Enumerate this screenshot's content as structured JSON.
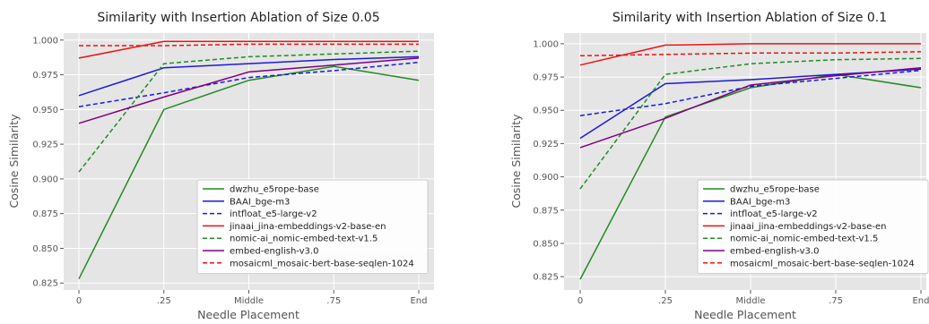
{
  "chart_data": [
    {
      "type": "line",
      "title": "Similarity with Insertion Ablation of Size 0.05",
      "xlabel": "Needle Placement",
      "ylabel": "Cosine Similarity",
      "categories": [
        "0",
        ".25",
        "Middle",
        ".75",
        "End"
      ],
      "ylim": [
        0.82,
        1.005
      ],
      "yticks": [
        "0.825",
        "0.850",
        "0.875",
        "0.900",
        "0.925",
        "0.950",
        "0.975",
        "1.000"
      ],
      "grid": true,
      "legend_position": "lower right",
      "series": [
        {
          "name": "dwzhu_e5rope-base",
          "color": "#228B22",
          "dashed": false,
          "values": [
            0.828,
            0.95,
            0.971,
            0.981,
            0.971
          ]
        },
        {
          "name": "BAAI_bge-m3",
          "color": "#1a1adb",
          "dashed": false,
          "values": [
            0.96,
            0.98,
            0.983,
            0.986,
            0.988
          ]
        },
        {
          "name": "intfloat_e5-large-v2",
          "color": "#1a1adb",
          "dashed": true,
          "values": [
            0.952,
            0.962,
            0.973,
            0.978,
            0.984
          ]
        },
        {
          "name": "jinaai_jina-embeddings-v2-base-en",
          "color": "#ee1111",
          "dashed": false,
          "values": [
            0.987,
            0.999,
            0.999,
            0.999,
            0.999
          ]
        },
        {
          "name": "nomic-ai_nomic-embed-text-v1.5",
          "color": "#228B22",
          "dashed": true,
          "values": [
            0.905,
            0.983,
            0.988,
            0.99,
            0.992
          ]
        },
        {
          "name": "embed-english-v3.0",
          "color": "#800080",
          "dashed": false,
          "values": [
            0.94,
            0.959,
            0.977,
            0.982,
            0.987
          ]
        },
        {
          "name": "mosaicml_mosaic-bert-base-seqlen-1024",
          "color": "#ee1111",
          "dashed": true,
          "values": [
            0.996,
            0.996,
            0.997,
            0.997,
            0.997
          ]
        }
      ]
    },
    {
      "type": "line",
      "title": "Similarity with Insertion Ablation of Size 0.1",
      "xlabel": "Needle Placement",
      "ylabel": "Cosine Similarity",
      "categories": [
        "0",
        ".25",
        "Middle",
        ".75",
        "End"
      ],
      "ylim": [
        0.815,
        1.008
      ],
      "yticks": [
        "0.825",
        "0.850",
        "0.875",
        "0.900",
        "0.925",
        "0.950",
        "0.975",
        "1.000"
      ],
      "grid": true,
      "legend_position": "lower right",
      "series": [
        {
          "name": "dwzhu_e5rope-base",
          "color": "#228B22",
          "dashed": false,
          "values": [
            0.823,
            0.945,
            0.967,
            0.977,
            0.967
          ]
        },
        {
          "name": "BAAI_bge-m3",
          "color": "#1a1adb",
          "dashed": false,
          "values": [
            0.929,
            0.97,
            0.973,
            0.977,
            0.981
          ]
        },
        {
          "name": "intfloat_e5-large-v2",
          "color": "#1a1adb",
          "dashed": true,
          "values": [
            0.946,
            0.955,
            0.968,
            0.974,
            0.98
          ]
        },
        {
          "name": "jinaai_jina-embeddings-v2-base-en",
          "color": "#ee1111",
          "dashed": false,
          "values": [
            0.984,
            0.999,
            1.0,
            1.0,
            1.0
          ]
        },
        {
          "name": "nomic-ai_nomic-embed-text-v1.5",
          "color": "#228B22",
          "dashed": true,
          "values": [
            0.891,
            0.977,
            0.985,
            0.988,
            0.989
          ]
        },
        {
          "name": "embed-english-v3.0",
          "color": "#800080",
          "dashed": false,
          "values": [
            0.922,
            0.944,
            0.969,
            0.976,
            0.982
          ]
        },
        {
          "name": "mosaicml_mosaic-bert-base-seqlen-1024",
          "color": "#ee1111",
          "dashed": true,
          "values": [
            0.991,
            0.992,
            0.993,
            0.993,
            0.994
          ]
        }
      ]
    }
  ]
}
